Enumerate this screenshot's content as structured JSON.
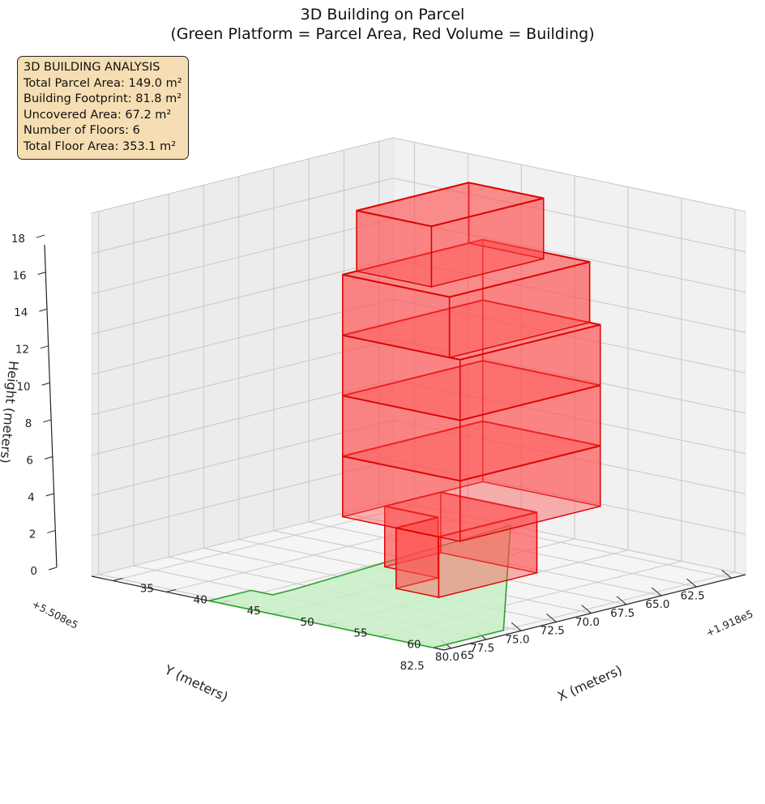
{
  "title": "3D Building on Parcel",
  "subtitle": "(Green Platform = Parcel Area, Red Volume = Building)",
  "info_box": {
    "heading": "3D BUILDING ANALYSIS",
    "lines": [
      "Total Parcel Area: 149.0 m²",
      "Building Footprint: 81.8 m²",
      "Uncovered Area: 67.2 m²",
      "Number of Floors: 6",
      "Total Floor Area: 353.1 m²"
    ]
  },
  "colors": {
    "parcel_fill": "#c7efc4",
    "parcel_edge": "#2ca02c",
    "building_fill": "#ff4d4d",
    "building_edge": "#dd0000",
    "pane": "#f2f2f2",
    "grid": "#c8c8c8",
    "info_bg": "#f5deb3"
  },
  "chart_data": {
    "type": "3d-surface",
    "xlabel": "X (meters)",
    "ylabel": "Y (meters)",
    "zlabel": "Height (meters)",
    "x_offset": "+1.918e5",
    "y_offset": "+5.508e5",
    "x_ticks": [
      "35",
      "40",
      "45",
      "50",
      "55",
      "60",
      "65"
    ],
    "y_ticks": [
      "62.5",
      "65.0",
      "67.5",
      "70.0",
      "72.5",
      "75.0",
      "77.5",
      "80.0",
      "82.5"
    ],
    "z_ticks": [
      "0",
      "2",
      "4",
      "6",
      "8",
      "10",
      "12",
      "14",
      "16",
      "18"
    ],
    "xlim": [
      33,
      66
    ],
    "ylim": [
      61.5,
      83
    ],
    "zlim": [
      0,
      18
    ],
    "grid": true,
    "series": [
      {
        "name": "Green Platform = Parcel Area",
        "polygon": [
          [
            44,
            61.5
          ],
          [
            65,
            78
          ],
          [
            65,
            83
          ],
          [
            44,
            83
          ],
          [
            44,
            80
          ],
          [
            46,
            80
          ],
          [
            46,
            78.5
          ]
        ]
      },
      {
        "name": "Red Volume = Building",
        "floors": [
          {
            "floor": 1,
            "z": [
              0,
              3
            ],
            "footprint": [
              [
                46,
                68
              ],
              [
                55,
                68
              ],
              [
                55,
                75
              ],
              [
                51,
                75
              ],
              [
                51,
                72
              ],
              [
                46,
                72
              ]
            ]
          },
          {
            "floor": 2,
            "z": [
              3,
              6
            ],
            "footprint": [
              [
                46,
                65
              ],
              [
                57,
                65
              ],
              [
                57,
                75
              ],
              [
                46,
                75
              ]
            ]
          },
          {
            "floor": 3,
            "z": [
              6,
              9
            ],
            "footprint": [
              [
                46,
                65
              ],
              [
                57,
                65
              ],
              [
                57,
                75
              ],
              [
                46,
                75
              ]
            ]
          },
          {
            "floor": 4,
            "z": [
              9,
              12
            ],
            "footprint": [
              [
                46,
                65
              ],
              [
                57,
                65
              ],
              [
                57,
                75
              ],
              [
                46,
                75
              ]
            ]
          },
          {
            "floor": 5,
            "z": [
              12,
              15
            ],
            "footprint": [
              [
                46,
                65
              ],
              [
                56,
                65
              ],
              [
                56,
                75
              ],
              [
                46,
                75
              ]
            ]
          },
          {
            "floor": 6,
            "z": [
              15,
              18
            ],
            "footprint": [
              [
                46,
                66
              ],
              [
                53,
                66
              ],
              [
                53,
                74
              ],
              [
                46,
                74
              ]
            ]
          }
        ]
      }
    ]
  }
}
